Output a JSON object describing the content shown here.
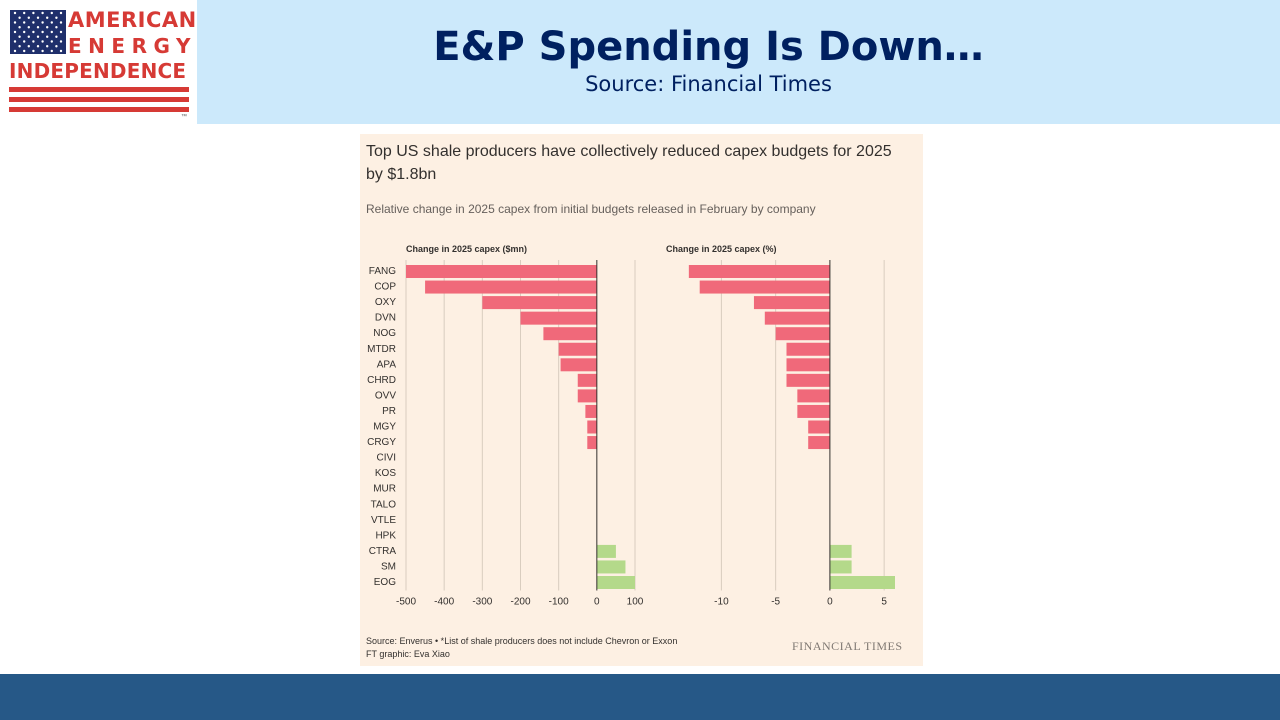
{
  "logo": {
    "line1": "AMERICAN",
    "line2": "ENERGY",
    "line3": "INDEPENDENCE",
    "tm": "™"
  },
  "slide": {
    "title": "E&P Spending Is Down…",
    "subtitle": "Source: Financial Times"
  },
  "colors": {
    "header_band": "#cce9fb",
    "title_text": "#002060",
    "footer_band": "#265887",
    "card_bg": "#fdf0e3",
    "negative_bar": "#f0697a",
    "positive_bar": "#b4d98a",
    "logo_red": "#d63a35",
    "logo_blue": "#1f2f6b"
  },
  "card": {
    "title": "Top US shale producers have collectively reduced capex budgets for 2025 by $1.8bn",
    "subtitle": "Relative change in 2025 capex from initial budgets released in February by company",
    "source": "Source: Enverus • *List of shale producers does not include Chevron or Exxon",
    "credit": "FT graphic: Eva Xiao",
    "brand": "FINANCIAL TIMES"
  },
  "chart_data": [
    {
      "type": "bar",
      "orientation": "horizontal",
      "title": "Change in 2025 capex ($mn)",
      "categories": [
        "FANG",
        "COP",
        "OXY",
        "DVN",
        "NOG",
        "MTDR",
        "APA",
        "CHRD",
        "OVV",
        "PR",
        "MGY",
        "CRGY",
        "CIVI",
        "KOS",
        "MUR",
        "TALO",
        "VTLE",
        "HPK",
        "CTRA",
        "SM",
        "EOG"
      ],
      "values": [
        -500,
        -450,
        -300,
        -200,
        -140,
        -100,
        -95,
        -50,
        -50,
        -30,
        -25,
        -25,
        0,
        0,
        0,
        0,
        0,
        0,
        50,
        75,
        100
      ],
      "xlim": [
        -500,
        100
      ],
      "ticks": [
        -500,
        -400,
        -300,
        -200,
        -100,
        0,
        100
      ],
      "grid": true
    },
    {
      "type": "bar",
      "orientation": "horizontal",
      "title": "Change in 2025 capex (%)",
      "categories": [
        "FANG",
        "COP",
        "OXY",
        "DVN",
        "NOG",
        "MTDR",
        "APA",
        "CHRD",
        "OVV",
        "PR",
        "MGY",
        "CRGY",
        "CIVI",
        "KOS",
        "MUR",
        "TALO",
        "VTLE",
        "HPK",
        "CTRA",
        "SM",
        "EOG"
      ],
      "values": [
        -13,
        -12,
        -7,
        -6,
        -5,
        -4,
        -4,
        -4,
        -3,
        -3,
        -2,
        -2,
        0,
        0,
        0,
        0,
        0,
        0,
        2,
        2,
        6
      ],
      "xlim": [
        -14,
        6
      ],
      "ticks": [
        -10,
        -5,
        0,
        5
      ],
      "grid": true
    }
  ]
}
